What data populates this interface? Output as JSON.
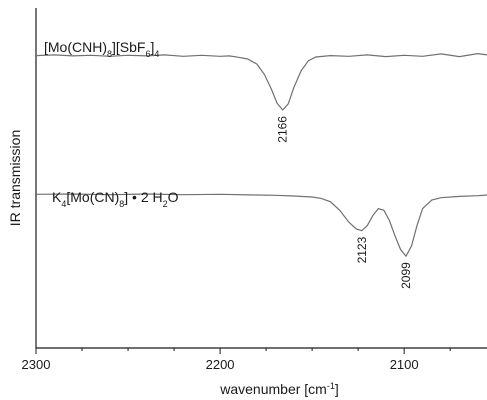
{
  "chart_data": {
    "type": "line",
    "xlabel_parts": [
      {
        "text": "wavenumber [cm",
        "sup": false
      },
      {
        "text": "-1",
        "sup": true
      },
      {
        "text": "]",
        "sup": false
      }
    ],
    "ylabel": "IR transmission",
    "xlim": [
      2300,
      2055
    ],
    "x_reversed": true,
    "xticks": [
      2300,
      2200,
      2100
    ],
    "yticks_labeled": false,
    "grid": false,
    "series": [
      {
        "label_parts": [
          {
            "text": "[Mo(CNH)",
            "sub": false
          },
          {
            "text": "8",
            "sub": true
          },
          {
            "text": "][SbF",
            "sub": false
          },
          {
            "text": "6",
            "sub": true
          },
          {
            "text": "]",
            "sub": false
          },
          {
            "text": "4",
            "sub": true
          }
        ],
        "points": [
          [
            2300,
            0.86
          ],
          [
            2290,
            0.862
          ],
          [
            2280,
            0.859
          ],
          [
            2270,
            0.861
          ],
          [
            2260,
            0.858
          ],
          [
            2250,
            0.861
          ],
          [
            2240,
            0.859
          ],
          [
            2230,
            0.862
          ],
          [
            2220,
            0.858
          ],
          [
            2210,
            0.861
          ],
          [
            2200,
            0.858
          ],
          [
            2195,
            0.859
          ],
          [
            2190,
            0.855
          ],
          [
            2185,
            0.85
          ],
          [
            2180,
            0.835
          ],
          [
            2176,
            0.805
          ],
          [
            2172,
            0.76
          ],
          [
            2169,
            0.72
          ],
          [
            2166,
            0.7
          ],
          [
            2163,
            0.718
          ],
          [
            2160,
            0.765
          ],
          [
            2156,
            0.815
          ],
          [
            2152,
            0.845
          ],
          [
            2148,
            0.856
          ],
          [
            2140,
            0.86
          ],
          [
            2130,
            0.858
          ],
          [
            2120,
            0.862
          ],
          [
            2110,
            0.857
          ],
          [
            2100,
            0.861
          ],
          [
            2090,
            0.858
          ],
          [
            2080,
            0.865
          ],
          [
            2070,
            0.857
          ],
          [
            2060,
            0.866
          ],
          [
            2055,
            0.862
          ]
        ],
        "peaks": [
          {
            "x": 2166,
            "label": "2166"
          }
        ]
      },
      {
        "label_parts": [
          {
            "text": "K",
            "sub": false
          },
          {
            "text": "4",
            "sub": true
          },
          {
            "text": "[Mo(CN)",
            "sub": false
          },
          {
            "text": "8",
            "sub": true
          },
          {
            "text": "] • 2 H",
            "sub": false
          },
          {
            "text": "2",
            "sub": true
          },
          {
            "text": "O",
            "sub": false
          }
        ],
        "points": [
          [
            2300,
            0.452
          ],
          [
            2280,
            0.453
          ],
          [
            2260,
            0.451
          ],
          [
            2240,
            0.453
          ],
          [
            2220,
            0.451
          ],
          [
            2200,
            0.452
          ],
          [
            2180,
            0.45
          ],
          [
            2170,
            0.449
          ],
          [
            2160,
            0.447
          ],
          [
            2150,
            0.444
          ],
          [
            2145,
            0.44
          ],
          [
            2140,
            0.43
          ],
          [
            2135,
            0.405
          ],
          [
            2130,
            0.37
          ],
          [
            2126,
            0.35
          ],
          [
            2123,
            0.345
          ],
          [
            2120,
            0.36
          ],
          [
            2117,
            0.39
          ],
          [
            2114,
            0.41
          ],
          [
            2111,
            0.405
          ],
          [
            2108,
            0.375
          ],
          [
            2105,
            0.33
          ],
          [
            2102,
            0.29
          ],
          [
            2099,
            0.27
          ],
          [
            2096,
            0.3
          ],
          [
            2093,
            0.36
          ],
          [
            2090,
            0.41
          ],
          [
            2085,
            0.435
          ],
          [
            2080,
            0.442
          ],
          [
            2070,
            0.446
          ],
          [
            2060,
            0.448
          ],
          [
            2055,
            0.45
          ]
        ],
        "peaks": [
          {
            "x": 2123,
            "label": "2123"
          },
          {
            "x": 2099,
            "label": "2099"
          }
        ]
      }
    ],
    "line_color": "#707070",
    "axis_color": "#1a1a1a"
  }
}
